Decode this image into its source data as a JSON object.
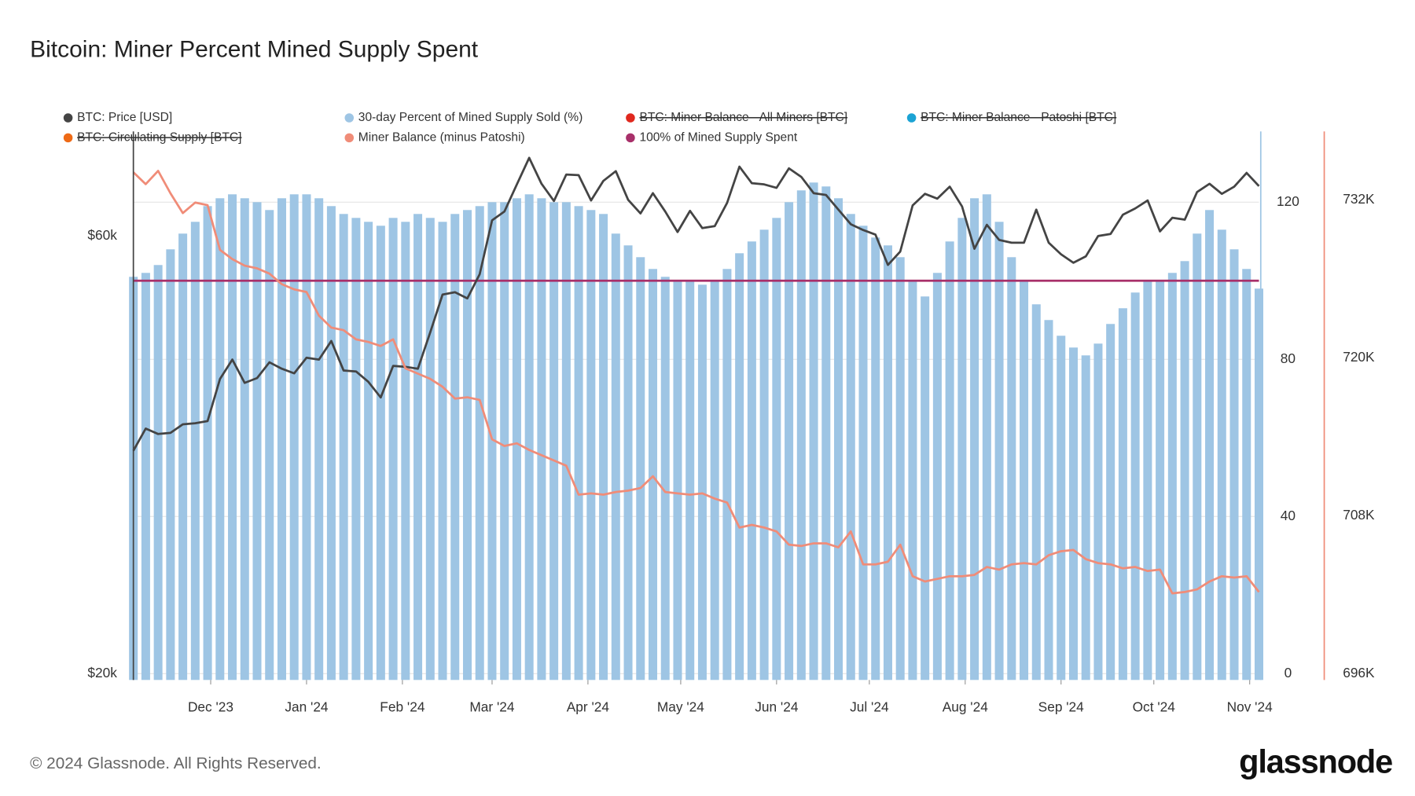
{
  "chart_data": {
    "type": "combo",
    "title": "Bitcoin: Miner Percent Mined Supply Spent",
    "footer": "© 2024 Glassnode. All Rights Reserved.",
    "brand": "glassnode",
    "xlim": [
      0,
      91
    ],
    "xticks": [
      {
        "value": 6.25,
        "label": "Dec '23"
      },
      {
        "value": 14,
        "label": "Jan '24"
      },
      {
        "value": 21.75,
        "label": "Feb '24"
      },
      {
        "value": 29,
        "label": "Mar '24"
      },
      {
        "value": 36.75,
        "label": "Apr '24"
      },
      {
        "value": 44.25,
        "label": "May '24"
      },
      {
        "value": 52,
        "label": "Jun '24"
      },
      {
        "value": 59.5,
        "label": "Jul '24"
      },
      {
        "value": 67.25,
        "label": "Aug '24"
      },
      {
        "value": 75,
        "label": "Sep '24"
      },
      {
        "value": 82.5,
        "label": "Oct '24"
      },
      {
        "value": 90.25,
        "label": "Nov '24"
      }
    ],
    "ylim": [
      20000,
      78000
    ],
    "log_scale": true,
    "yticks": [
      {
        "value": 20000,
        "label": "$20k"
      },
      {
        "value": 60000,
        "label": "$60k"
      }
    ],
    "y2lim": [
      0,
      138
    ],
    "y2ticks": [
      0,
      40,
      80,
      120
    ],
    "y3lim": [
      696000,
      737200
    ],
    "y3ticks": [
      {
        "value": 696000,
        "label": "696K"
      },
      {
        "value": 708000,
        "label": "708K"
      },
      {
        "value": 720000,
        "label": "720K"
      },
      {
        "value": 732000,
        "label": "732K"
      }
    ],
    "grid": true,
    "series": [
      {
        "name": "BTC: Price [USD]",
        "color": "#444444",
        "kind": "line",
        "axis": "y",
        "values": [
          35000,
          37000,
          36500,
          36600,
          37400,
          37500,
          37700,
          41900,
          44000,
          41500,
          42000,
          43700,
          43000,
          42500,
          44200,
          44000,
          46100,
          42800,
          42700,
          41600,
          40000,
          43300,
          43200,
          43000,
          47100,
          51800,
          52100,
          51300,
          54500,
          62400,
          63800,
          68300,
          73000,
          68400,
          65500,
          70000,
          69900,
          65600,
          68900,
          70600,
          65700,
          63500,
          66800,
          63800,
          60600,
          63900,
          61200,
          61500,
          65200,
          71400,
          68500,
          68300,
          67700,
          71100,
          69600,
          66800,
          66500,
          64100,
          61800,
          60900,
          60200,
          55800,
          57700,
          64800,
          66700,
          65900,
          67900,
          64600,
          58100,
          61700,
          59400,
          59000,
          59000,
          64100,
          59000,
          57300,
          56100,
          57000,
          60000,
          60300,
          63300,
          64300,
          65600,
          60700,
          62800,
          62500,
          67000,
          68400,
          66700,
          67900,
          70300,
          68000
        ]
      },
      {
        "name": "30-day Percent of Mined Supply Sold (%)",
        "color": "#9ec5e4",
        "kind": "bar",
        "axis": "y2",
        "values": [
          101,
          102,
          104,
          108,
          112,
          115,
          119,
          121,
          122,
          121,
          120,
          118,
          121,
          122,
          122,
          121,
          119,
          117,
          116,
          115,
          114,
          116,
          115,
          117,
          116,
          115,
          117,
          118,
          119,
          120,
          120,
          121,
          122,
          121,
          120,
          120,
          119,
          118,
          117,
          112,
          109,
          106,
          103,
          101,
          100,
          100,
          99,
          100,
          103,
          107,
          110,
          113,
          116,
          120,
          123,
          125,
          124,
          121,
          117,
          114,
          111,
          109,
          106,
          100,
          96,
          102,
          110,
          116,
          121,
          122,
          115,
          106,
          100,
          94,
          90,
          86,
          83,
          81,
          84,
          89,
          93,
          97,
          100,
          100,
          102,
          105,
          112,
          118,
          113,
          108,
          103,
          98
        ]
      },
      {
        "name": "BTC: Miner Balance - All Miners [BTC]",
        "color": "#e0281e",
        "hidden": true
      },
      {
        "name": "BTC: Miner Balance - Patoshi [BTC]",
        "color": "#1ba3d4",
        "hidden": true
      },
      {
        "name": "BTC: Circulating Supply [BTC]",
        "color": "#ee6a16",
        "hidden": true
      },
      {
        "name": "Miner Balance (minus Patoshi)",
        "color": "#f08c78",
        "kind": "line",
        "axis": "y3",
        "values": [
          734100,
          733200,
          734200,
          732500,
          731000,
          731800,
          731600,
          728200,
          727500,
          727000,
          726800,
          726400,
          725600,
          725200,
          725000,
          723200,
          722300,
          722100,
          721400,
          721200,
          720900,
          721400,
          719200,
          718800,
          718400,
          717800,
          716900,
          717000,
          716800,
          713800,
          713300,
          713500,
          713000,
          712600,
          712200,
          711800,
          709600,
          709700,
          709600,
          709800,
          709900,
          710100,
          711000,
          709800,
          709700,
          709600,
          709700,
          709300,
          709000,
          707100,
          707300,
          707100,
          706800,
          705800,
          705700,
          705900,
          705900,
          705600,
          706800,
          704300,
          704300,
          704500,
          705800,
          703400,
          703000,
          703200,
          703400,
          703400,
          703500,
          704100,
          703900,
          704300,
          704400,
          704300,
          705000,
          705300,
          705400,
          704700,
          704400,
          704300,
          704000,
          704100,
          703800,
          703900,
          702100,
          702200,
          702400,
          703000,
          703400,
          703300,
          703400,
          702200
        ]
      },
      {
        "name": "100% of Mined Supply Spent",
        "color": "#a8306a",
        "kind": "hline",
        "axis": "y2",
        "value": 100
      }
    ]
  }
}
